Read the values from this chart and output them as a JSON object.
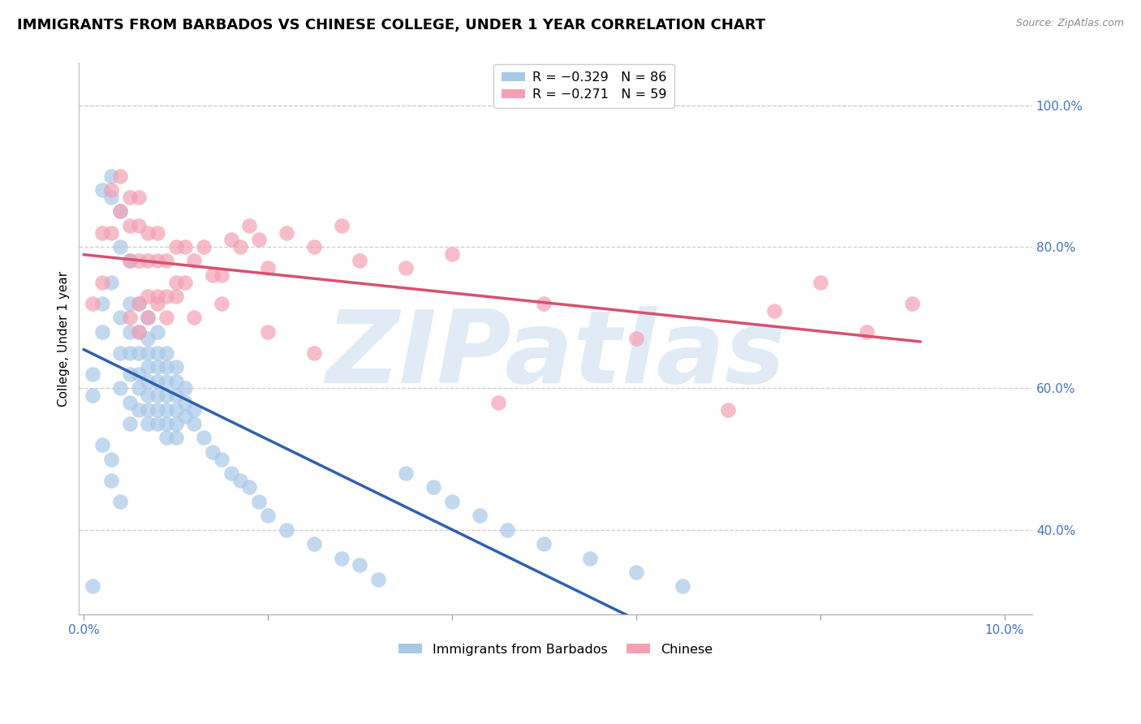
{
  "title": "IMMIGRANTS FROM BARBADOS VS CHINESE COLLEGE, UNDER 1 YEAR CORRELATION CHART",
  "source": "Source: ZipAtlas.com",
  "ylabel": "College, Under 1 year",
  "xlim": [
    -0.0005,
    0.103
  ],
  "ylim": [
    0.28,
    1.06
  ],
  "right_yticks": [
    0.4,
    0.6,
    0.8,
    1.0
  ],
  "right_ytick_labels": [
    "40.0%",
    "60.0%",
    "80.0%",
    "100.0%"
  ],
  "xticks": [
    0.0,
    0.02,
    0.04,
    0.06,
    0.08,
    0.1
  ],
  "xtick_labels": [
    "0.0%",
    "",
    "",
    "",
    "",
    "10.0%"
  ],
  "legend1_entries": [
    {
      "label": "R = −0.329   N = 86",
      "color": "#A8C8E8"
    },
    {
      "label": "R = −0.271   N = 59",
      "color": "#F4A0B4"
    }
  ],
  "legend2_entries": [
    {
      "label": "Immigrants from Barbados",
      "color": "#A8C8E8"
    },
    {
      "label": "Chinese",
      "color": "#F4A0B4"
    }
  ],
  "barbados_color": "#A8C8E8",
  "chinese_color": "#F4A0B4",
  "barbados_line_color": "#3060B0",
  "chinese_line_color": "#D85070",
  "grid_color": "#CCCCCC",
  "background_color": "#FFFFFF",
  "watermark": "ZIPatlas",
  "watermark_color": "#C8DCF0",
  "title_fontsize": 13,
  "axis_label_fontsize": 11,
  "tick_fontsize": 11,
  "right_tick_color": "#4472C4",
  "x_tick_color": "#4472C4",
  "barbados_x": [
    0.001,
    0.002,
    0.002,
    0.002,
    0.003,
    0.003,
    0.003,
    0.004,
    0.004,
    0.004,
    0.004,
    0.004,
    0.005,
    0.005,
    0.005,
    0.005,
    0.005,
    0.005,
    0.005,
    0.006,
    0.006,
    0.006,
    0.006,
    0.006,
    0.006,
    0.007,
    0.007,
    0.007,
    0.007,
    0.007,
    0.007,
    0.007,
    0.007,
    0.008,
    0.008,
    0.008,
    0.008,
    0.008,
    0.008,
    0.008,
    0.009,
    0.009,
    0.009,
    0.009,
    0.009,
    0.009,
    0.009,
    0.01,
    0.01,
    0.01,
    0.01,
    0.01,
    0.01,
    0.011,
    0.011,
    0.011,
    0.012,
    0.012,
    0.013,
    0.014,
    0.015,
    0.016,
    0.017,
    0.018,
    0.019,
    0.02,
    0.022,
    0.025,
    0.028,
    0.03,
    0.032,
    0.035,
    0.038,
    0.04,
    0.043,
    0.046,
    0.05,
    0.055,
    0.06,
    0.065,
    0.001,
    0.001,
    0.002,
    0.003,
    0.003,
    0.004
  ],
  "barbados_y": [
    0.32,
    0.88,
    0.72,
    0.68,
    0.9,
    0.87,
    0.75,
    0.85,
    0.8,
    0.7,
    0.65,
    0.6,
    0.78,
    0.72,
    0.68,
    0.65,
    0.62,
    0.58,
    0.55,
    0.72,
    0.68,
    0.65,
    0.62,
    0.6,
    0.57,
    0.7,
    0.67,
    0.65,
    0.63,
    0.61,
    0.59,
    0.57,
    0.55,
    0.68,
    0.65,
    0.63,
    0.61,
    0.59,
    0.57,
    0.55,
    0.65,
    0.63,
    0.61,
    0.59,
    0.57,
    0.55,
    0.53,
    0.63,
    0.61,
    0.59,
    0.57,
    0.55,
    0.53,
    0.6,
    0.58,
    0.56,
    0.57,
    0.55,
    0.53,
    0.51,
    0.5,
    0.48,
    0.47,
    0.46,
    0.44,
    0.42,
    0.4,
    0.38,
    0.36,
    0.35,
    0.33,
    0.48,
    0.46,
    0.44,
    0.42,
    0.4,
    0.38,
    0.36,
    0.34,
    0.32,
    0.62,
    0.59,
    0.52,
    0.5,
    0.47,
    0.44
  ],
  "chinese_x": [
    0.001,
    0.002,
    0.002,
    0.003,
    0.003,
    0.004,
    0.004,
    0.005,
    0.005,
    0.005,
    0.006,
    0.006,
    0.006,
    0.006,
    0.007,
    0.007,
    0.007,
    0.008,
    0.008,
    0.008,
    0.009,
    0.009,
    0.01,
    0.01,
    0.011,
    0.011,
    0.012,
    0.013,
    0.014,
    0.015,
    0.016,
    0.017,
    0.018,
    0.019,
    0.02,
    0.022,
    0.025,
    0.028,
    0.03,
    0.035,
    0.04,
    0.045,
    0.05,
    0.06,
    0.07,
    0.075,
    0.08,
    0.085,
    0.09,
    0.005,
    0.006,
    0.007,
    0.008,
    0.009,
    0.01,
    0.012,
    0.015,
    0.02,
    0.025
  ],
  "chinese_y": [
    0.72,
    0.82,
    0.75,
    0.88,
    0.82,
    0.9,
    0.85,
    0.87,
    0.83,
    0.78,
    0.87,
    0.83,
    0.78,
    0.72,
    0.82,
    0.78,
    0.73,
    0.82,
    0.78,
    0.73,
    0.78,
    0.73,
    0.8,
    0.75,
    0.8,
    0.75,
    0.78,
    0.8,
    0.76,
    0.76,
    0.81,
    0.8,
    0.83,
    0.81,
    0.77,
    0.82,
    0.8,
    0.83,
    0.78,
    0.77,
    0.79,
    0.58,
    0.72,
    0.67,
    0.57,
    0.71,
    0.75,
    0.68,
    0.72,
    0.7,
    0.68,
    0.7,
    0.72,
    0.7,
    0.73,
    0.7,
    0.72,
    0.68,
    0.65
  ]
}
